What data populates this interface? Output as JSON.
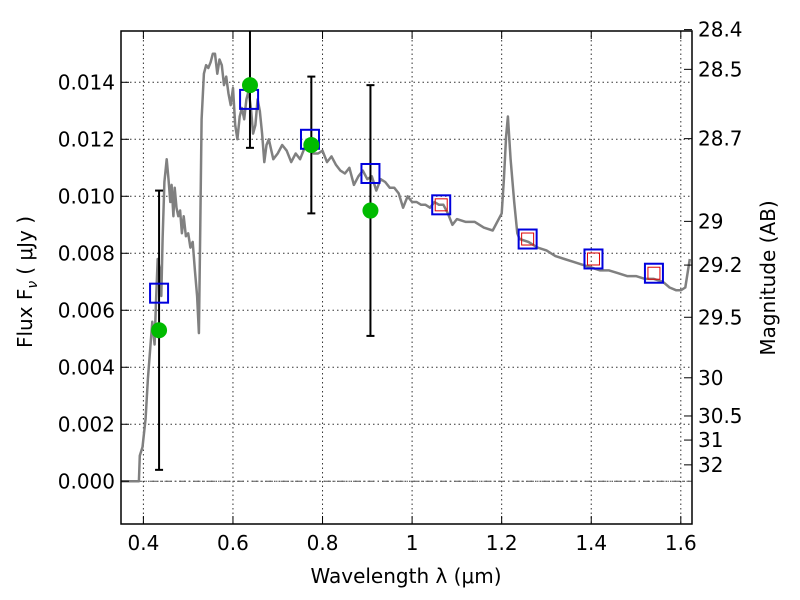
{
  "chart_data": {
    "type": "line",
    "xlabel": "Wavelength  λ (μm)",
    "ylabel": "Flux  F",
    "ylabel_sub": "ν",
    "ylabel_unit": "( μJy )",
    "y2label": "Magnitude (AB)",
    "xlim": [
      0.35,
      1.625
    ],
    "ylim": [
      -0.0015,
      0.0158
    ],
    "x_ticks": [
      0.4,
      0.6,
      0.8,
      1,
      1.2,
      1.4,
      1.6
    ],
    "x_tick_labels": [
      "0.4",
      "0.6",
      "0.8",
      "1",
      "1.2",
      "1.4",
      "1.6"
    ],
    "y_ticks": [
      0,
      0.002,
      0.004,
      0.006,
      0.008,
      0.01,
      0.012,
      0.014
    ],
    "y_tick_labels": [
      "0.000",
      "0.002",
      "0.004",
      "0.006",
      "0.008",
      "0.010",
      "0.012",
      "0.014"
    ],
    "y2_ticks": [
      {
        "label": "28.4",
        "value": 28.4
      },
      {
        "label": "28.5",
        "value": 28.5
      },
      {
        "label": "28.7",
        "value": 28.7
      },
      {
        "label": "29",
        "value": 29.0
      },
      {
        "label": "29.2",
        "value": 29.2
      },
      {
        "label": "29.5",
        "value": 29.5
      },
      {
        "label": "30",
        "value": 30.0
      },
      {
        "label": "30.5",
        "value": 30.5
      },
      {
        "label": "31",
        "value": 31.0
      },
      {
        "label": "32",
        "value": 32.0
      }
    ],
    "grid": true,
    "zero_line": 0,
    "colors": {
      "model": "#808080",
      "observed": "#00bb00",
      "model_photometry": "#0000dd",
      "inner_box": "#dd0000",
      "errorbar": "#000000"
    },
    "series": [
      {
        "kind": "model_sed",
        "points": [
          [
            0.35,
            0.0
          ],
          [
            0.39,
            0.0
          ],
          [
            0.392,
            0.0009
          ],
          [
            0.398,
            0.0012
          ],
          [
            0.405,
            0.0022
          ],
          [
            0.41,
            0.0036
          ],
          [
            0.415,
            0.0046
          ],
          [
            0.42,
            0.0056
          ],
          [
            0.425,
            0.0048
          ],
          [
            0.428,
            0.0062
          ],
          [
            0.432,
            0.0078
          ],
          [
            0.436,
            0.0075
          ],
          [
            0.44,
            0.0065
          ],
          [
            0.443,
            0.0085
          ],
          [
            0.447,
            0.0105
          ],
          [
            0.452,
            0.0113
          ],
          [
            0.456,
            0.0106
          ],
          [
            0.46,
            0.0098
          ],
          [
            0.463,
            0.0104
          ],
          [
            0.467,
            0.0093
          ],
          [
            0.47,
            0.0103
          ],
          [
            0.474,
            0.0096
          ],
          [
            0.478,
            0.0093
          ],
          [
            0.482,
            0.0095
          ],
          [
            0.486,
            0.0087
          ],
          [
            0.49,
            0.0093
          ],
          [
            0.495,
            0.0086
          ],
          [
            0.5,
            0.0087
          ],
          [
            0.505,
            0.0082
          ],
          [
            0.51,
            0.0084
          ],
          [
            0.515,
            0.0074
          ],
          [
            0.52,
            0.0065
          ],
          [
            0.524,
            0.0052
          ],
          [
            0.527,
            0.009
          ],
          [
            0.53,
            0.0127
          ],
          [
            0.535,
            0.0143
          ],
          [
            0.54,
            0.0146
          ],
          [
            0.545,
            0.0145
          ],
          [
            0.55,
            0.0147
          ],
          [
            0.555,
            0.015
          ],
          [
            0.56,
            0.015
          ],
          [
            0.565,
            0.0143
          ],
          [
            0.57,
            0.0148
          ],
          [
            0.575,
            0.0146
          ],
          [
            0.58,
            0.0139
          ],
          [
            0.585,
            0.0142
          ],
          [
            0.59,
            0.0136
          ],
          [
            0.595,
            0.0132
          ],
          [
            0.6,
            0.0138
          ],
          [
            0.605,
            0.0125
          ],
          [
            0.61,
            0.012
          ],
          [
            0.615,
            0.0128
          ],
          [
            0.62,
            0.0131
          ],
          [
            0.625,
            0.0127
          ],
          [
            0.63,
            0.0134
          ],
          [
            0.635,
            0.0137
          ],
          [
            0.64,
            0.0131
          ],
          [
            0.645,
            0.0122
          ],
          [
            0.65,
            0.0125
          ],
          [
            0.655,
            0.0134
          ],
          [
            0.66,
            0.013
          ],
          [
            0.665,
            0.0122
          ],
          [
            0.67,
            0.0112
          ],
          [
            0.675,
            0.0118
          ],
          [
            0.68,
            0.012
          ],
          [
            0.69,
            0.0113
          ],
          [
            0.7,
            0.0115
          ],
          [
            0.71,
            0.0118
          ],
          [
            0.72,
            0.0116
          ],
          [
            0.73,
            0.0112
          ],
          [
            0.74,
            0.0115
          ],
          [
            0.75,
            0.0113
          ],
          [
            0.76,
            0.0117
          ],
          [
            0.77,
            0.0118
          ],
          [
            0.78,
            0.0115
          ],
          [
            0.79,
            0.0115
          ],
          [
            0.8,
            0.0116
          ],
          [
            0.81,
            0.0112
          ],
          [
            0.82,
            0.0114
          ],
          [
            0.83,
            0.0111
          ],
          [
            0.84,
            0.0109
          ],
          [
            0.85,
            0.0108
          ],
          [
            0.86,
            0.011
          ],
          [
            0.87,
            0.0104
          ],
          [
            0.88,
            0.0107
          ],
          [
            0.89,
            0.0109
          ],
          [
            0.9,
            0.0106
          ],
          [
            0.91,
            0.0107
          ],
          [
            0.92,
            0.0102
          ],
          [
            0.93,
            0.0106
          ],
          [
            0.94,
            0.0105
          ],
          [
            0.95,
            0.0103
          ],
          [
            0.96,
            0.0103
          ],
          [
            0.97,
            0.0101
          ],
          [
            0.98,
            0.0096
          ],
          [
            0.99,
            0.01
          ],
          [
            1.0,
            0.0098
          ],
          [
            1.01,
            0.0098
          ],
          [
            1.02,
            0.0097
          ],
          [
            1.03,
            0.0097
          ],
          [
            1.04,
            0.0096
          ],
          [
            1.05,
            0.0098
          ],
          [
            1.06,
            0.0097
          ],
          [
            1.07,
            0.0097
          ],
          [
            1.08,
            0.0094
          ],
          [
            1.09,
            0.009
          ],
          [
            1.1,
            0.0092
          ],
          [
            1.12,
            0.0091
          ],
          [
            1.14,
            0.0091
          ],
          [
            1.16,
            0.0089
          ],
          [
            1.18,
            0.0088
          ],
          [
            1.2,
            0.0094
          ],
          [
            1.205,
            0.0106
          ],
          [
            1.21,
            0.0121
          ],
          [
            1.214,
            0.0128
          ],
          [
            1.22,
            0.0113
          ],
          [
            1.228,
            0.0098
          ],
          [
            1.235,
            0.0087
          ],
          [
            1.24,
            0.0085
          ],
          [
            1.26,
            0.0084
          ],
          [
            1.28,
            0.0082
          ],
          [
            1.3,
            0.0081
          ],
          [
            1.32,
            0.0079
          ],
          [
            1.34,
            0.0078
          ],
          [
            1.36,
            0.0077
          ],
          [
            1.38,
            0.0076
          ],
          [
            1.4,
            0.0075
          ],
          [
            1.42,
            0.0074
          ],
          [
            1.44,
            0.0074
          ],
          [
            1.46,
            0.0073
          ],
          [
            1.48,
            0.0072
          ],
          [
            1.5,
            0.0072
          ],
          [
            1.52,
            0.0071
          ],
          [
            1.54,
            0.0071
          ],
          [
            1.56,
            0.007
          ],
          [
            1.575,
            0.0068
          ],
          [
            1.59,
            0.0067
          ],
          [
            1.6,
            0.0067
          ],
          [
            1.61,
            0.0068
          ],
          [
            1.62,
            0.0078
          ]
        ]
      },
      {
        "kind": "observed_photometry",
        "points": [
          {
            "x": 0.435,
            "y": 0.0053,
            "yerr": 0.0049
          },
          {
            "x": 0.638,
            "y": 0.0139,
            "yerr": 0.0022
          },
          {
            "x": 0.775,
            "y": 0.0118,
            "yerr": 0.0024
          },
          {
            "x": 0.907,
            "y": 0.0095,
            "yerr": 0.0044
          }
        ]
      },
      {
        "kind": "model_photometry",
        "points": [
          {
            "x": 0.435,
            "y": 0.0066,
            "inner": false
          },
          {
            "x": 0.636,
            "y": 0.0134,
            "inner": false
          },
          {
            "x": 0.772,
            "y": 0.012,
            "inner": false
          },
          {
            "x": 0.907,
            "y": 0.0108,
            "inner": false
          },
          {
            "x": 1.065,
            "y": 0.0097,
            "inner": true
          },
          {
            "x": 1.258,
            "y": 0.0085,
            "inner": true
          },
          {
            "x": 1.405,
            "y": 0.0078,
            "inner": true
          },
          {
            "x": 1.54,
            "y": 0.0073,
            "inner": true
          }
        ]
      }
    ]
  }
}
